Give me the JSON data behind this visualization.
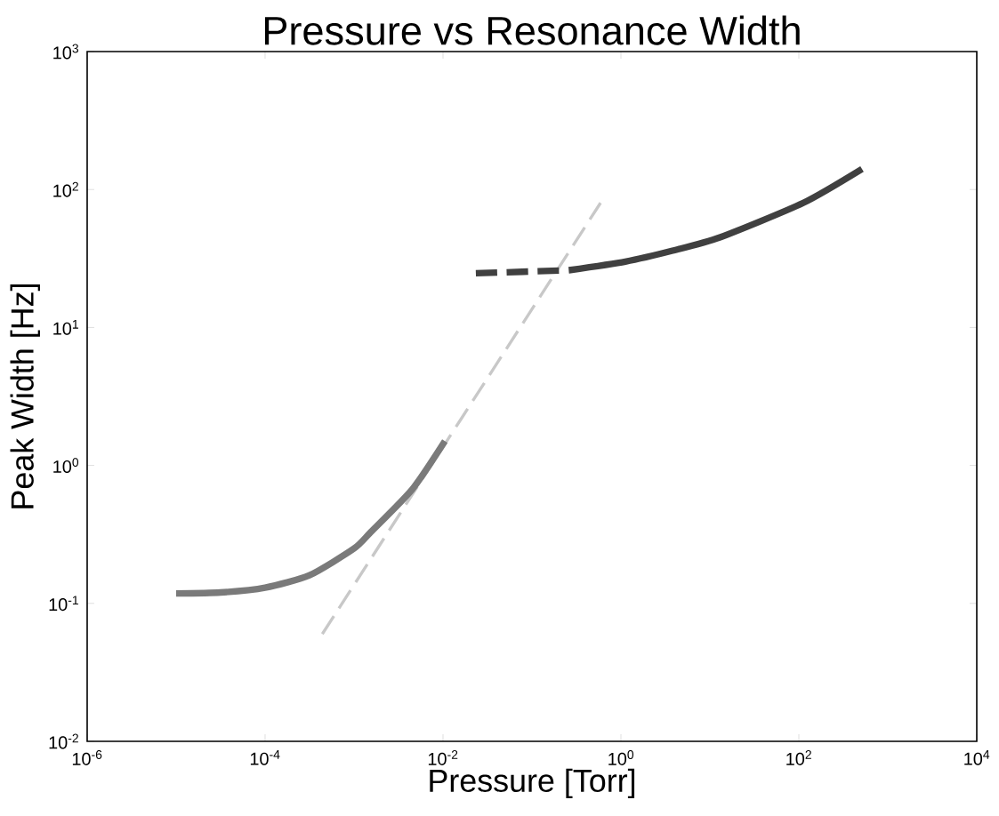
{
  "chart_data": {
    "type": "line",
    "title": "Pressure vs Resonance Width",
    "xlabel": "Pressure [Torr]",
    "ylabel": "Peak Width [Hz]",
    "log": "xy",
    "xlim": [
      1e-06,
      10000
    ],
    "ylim": [
      0.01,
      1000
    ],
    "xticks": [
      {
        "value": 1e-06,
        "label": "10$^{-6}$"
      },
      {
        "value": 0.0001,
        "label": "10$^{-4}$"
      },
      {
        "value": 0.01,
        "label": "10$^{-2}$"
      },
      {
        "value": 1,
        "label": "10$^{0}$"
      },
      {
        "value": 100,
        "label": "10$^{2}$"
      },
      {
        "value": 10000,
        "label": "10$^{4}$"
      }
    ],
    "yticks": [
      {
        "value": 0.01,
        "label": "10$^{-2}$"
      },
      {
        "value": 0.1,
        "label": "10$^{-1}$"
      },
      {
        "value": 1,
        "label": "10$^{0}$"
      },
      {
        "value": 10,
        "label": "10$^{1}$"
      },
      {
        "value": 100,
        "label": "10$^{2}$"
      },
      {
        "value": 1000,
        "label": "10$^{3}$"
      }
    ],
    "series": [
      {
        "color": "#c8c8c8",
        "line_style": "dashed",
        "x": [
          0.00044,
          0.59
        ],
        "values": [
          0.06,
          80
        ]
      },
      {
        "color": "#7a7a7a",
        "line_style": "solid",
        "x": [
          1e-05,
          3.16e-05,
          0.0001,
          0.000316,
          0.001,
          0.00155,
          0.0045,
          0.0105
        ],
        "values": [
          0.118,
          0.12,
          0.13,
          0.16,
          0.25,
          0.33,
          0.67,
          1.5
        ]
      },
      {
        "color": "#404040",
        "line_style": "dashed",
        "x": [
          0.0234,
          0.26
        ],
        "values": [
          24.7,
          26
        ]
      },
      {
        "color": "#404040",
        "line_style": "solid",
        "x": [
          0.26,
          1.12,
          3.8,
          13,
          112,
          513
        ],
        "values": [
          26,
          30,
          36,
          45,
          80,
          141
        ]
      }
    ]
  }
}
